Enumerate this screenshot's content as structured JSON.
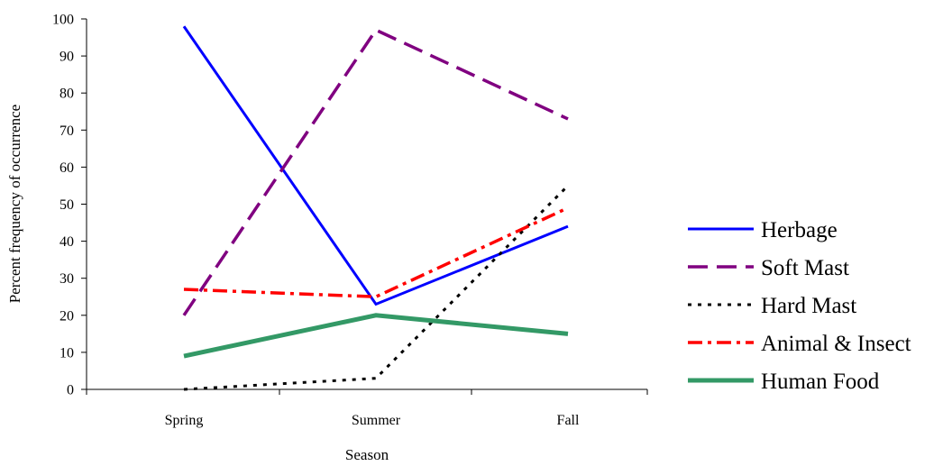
{
  "chart_data": {
    "type": "line",
    "title": "",
    "xlabel": "Season",
    "ylabel": "Percent frequency of occurrence",
    "categories": [
      "Spring",
      "Summer",
      "Fall"
    ],
    "ylim": [
      0,
      100
    ],
    "yticks": [
      0,
      10,
      20,
      30,
      40,
      50,
      60,
      70,
      80,
      90,
      100
    ],
    "grid": false,
    "legend_position": "right",
    "series": [
      {
        "name": "Herbage",
        "values": [
          98,
          23,
          44
        ],
        "color": "#0000ff",
        "style": "solid"
      },
      {
        "name": "Soft Mast",
        "values": [
          20,
          97,
          73
        ],
        "color": "#800080",
        "style": "long-dash"
      },
      {
        "name": "Hard Mast",
        "values": [
          0,
          3,
          55
        ],
        "color": "#000000",
        "style": "dotted"
      },
      {
        "name": "Animal & Insect",
        "values": [
          27,
          25,
          49
        ],
        "color": "#ff0000",
        "style": "dash-dot"
      },
      {
        "name": "Human Food",
        "values": [
          9,
          20,
          15
        ],
        "color": "#339966",
        "style": "solid-thick"
      }
    ]
  }
}
